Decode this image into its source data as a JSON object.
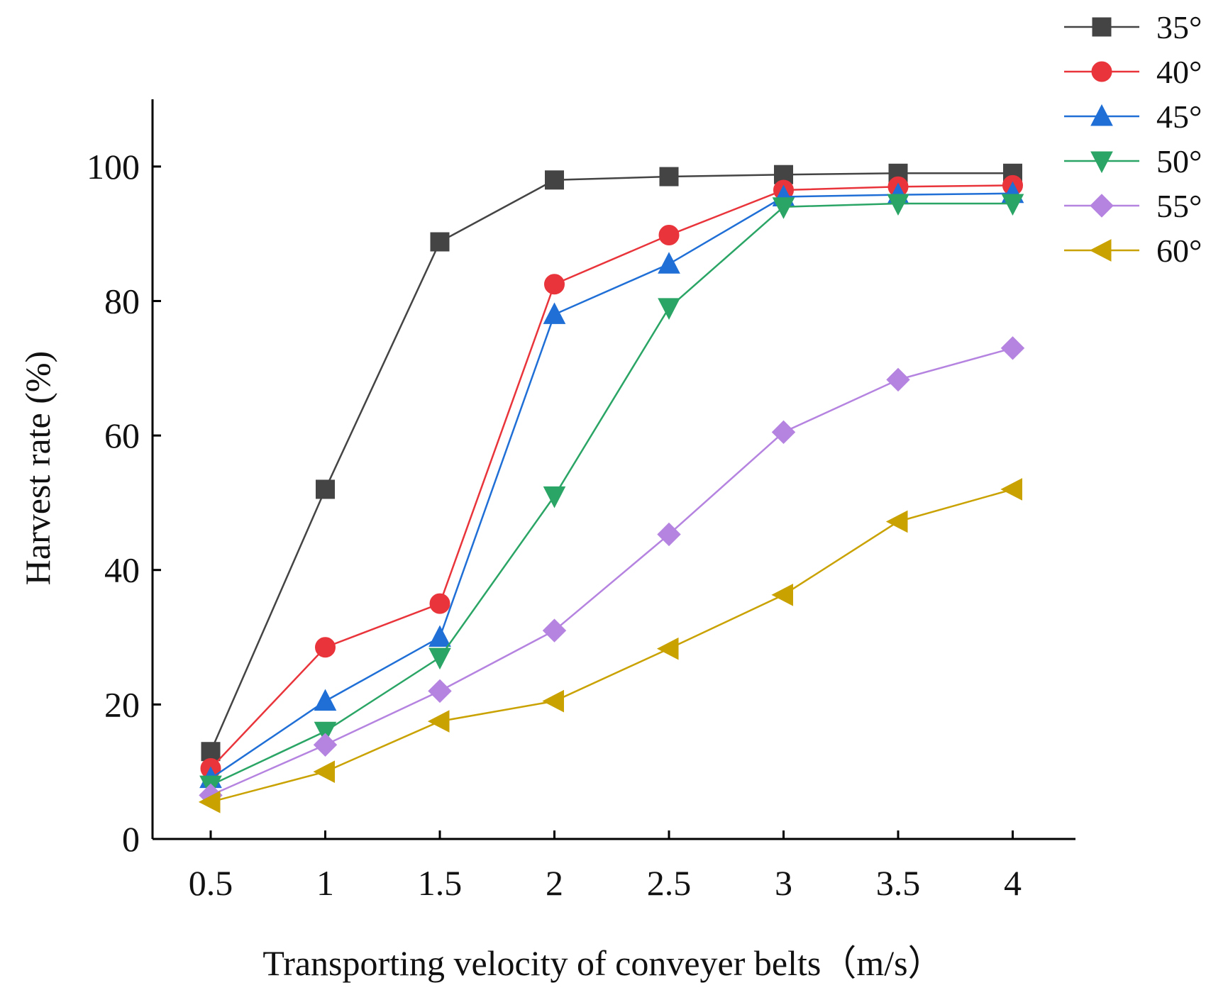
{
  "chart_data": {
    "type": "line",
    "xlabel": "Transporting velocity of conveyer belts（m/s）",
    "ylabel": "Harvest rate (%)",
    "x": [
      0.5,
      1,
      1.5,
      2,
      2.5,
      3,
      3.5,
      4
    ],
    "x_tick_labels": [
      "0.5",
      "1",
      "1.5",
      "2",
      "2.5",
      "3",
      "3.5",
      "4"
    ],
    "y_ticks": [
      0,
      20,
      40,
      60,
      80,
      100
    ],
    "y_tick_labels": [
      "0",
      "20",
      "40",
      "60",
      "80",
      "100"
    ],
    "ylim": [
      0,
      110
    ],
    "xlim": [
      0.25,
      4.5
    ],
    "grid": false,
    "legend_position": "top-right",
    "series": [
      {
        "name": "35°",
        "color": "#444444",
        "marker": "square",
        "values": [
          13,
          52,
          88.8,
          98,
          98.5,
          98.8,
          99,
          99
        ]
      },
      {
        "name": "40°",
        "color": "#e8343a",
        "marker": "circle",
        "values": [
          10.5,
          28.5,
          35,
          82.5,
          89.8,
          96.5,
          97,
          97.2
        ]
      },
      {
        "name": "45°",
        "color": "#1f6fd6",
        "marker": "triangle-up",
        "values": [
          9,
          20.5,
          30,
          78,
          85.5,
          95.5,
          95.8,
          96
        ]
      },
      {
        "name": "50°",
        "color": "#2aa565",
        "marker": "triangle-down",
        "values": [
          8,
          16,
          27,
          51,
          79,
          94,
          94.5,
          94.5
        ]
      },
      {
        "name": "55°",
        "color": "#b583e0",
        "marker": "diamond",
        "values": [
          6.5,
          14,
          22,
          31,
          45.3,
          60.5,
          68.3,
          73
        ]
      },
      {
        "name": "60°",
        "color": "#c9a200",
        "marker": "triangle-left",
        "values": [
          5.5,
          10,
          17.5,
          20.5,
          28.3,
          36.3,
          47.2,
          52
        ]
      }
    ]
  }
}
